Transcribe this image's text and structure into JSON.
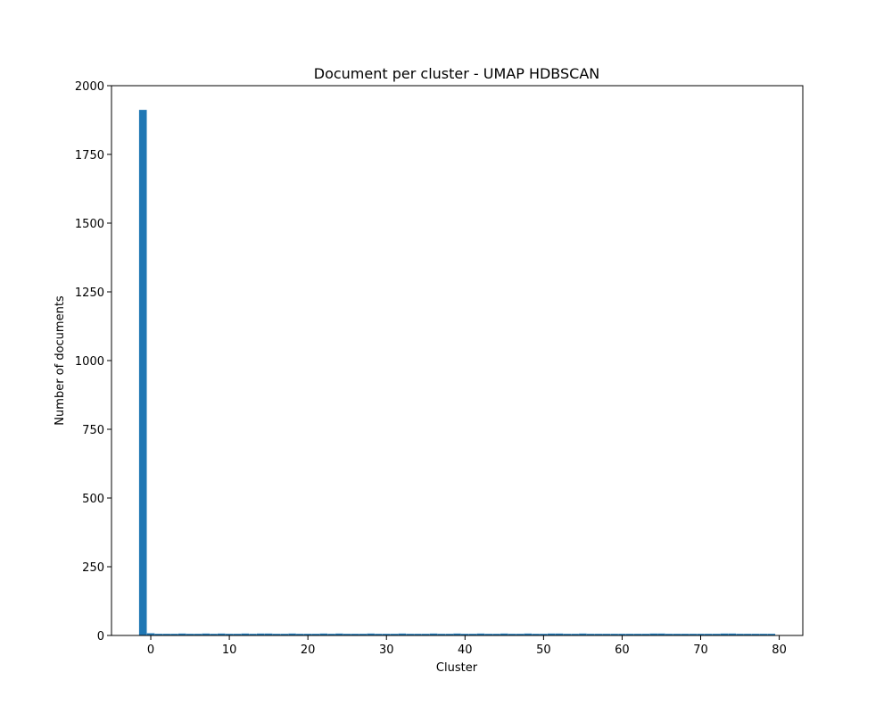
{
  "chart_data": {
    "type": "bar",
    "title": "Document per cluster - UMAP HDBSCAN",
    "xlabel": "Cluster",
    "ylabel": "Number of documents",
    "xlim": [
      -5,
      83
    ],
    "ylim": [
      0,
      2000
    ],
    "xticks": [
      0,
      10,
      20,
      30,
      40,
      50,
      60,
      70,
      80
    ],
    "yticks": [
      0,
      250,
      500,
      750,
      1000,
      1250,
      1500,
      1750,
      2000
    ],
    "bar_color": "#1f77b4",
    "x": [
      -1,
      0,
      1,
      2,
      3,
      4,
      5,
      6,
      7,
      8,
      9,
      10,
      11,
      12,
      13,
      14,
      15,
      16,
      17,
      18,
      19,
      20,
      21,
      22,
      23,
      24,
      25,
      26,
      27,
      28,
      29,
      30,
      31,
      32,
      33,
      34,
      35,
      36,
      37,
      38,
      39,
      40,
      41,
      42,
      43,
      44,
      45,
      46,
      47,
      48,
      49,
      50,
      51,
      52,
      53,
      54,
      55,
      56,
      57,
      58,
      59,
      60,
      61,
      62,
      63,
      64,
      65,
      66,
      67,
      68,
      69,
      70,
      71,
      72,
      73,
      74,
      75,
      76,
      77,
      78,
      79
    ],
    "values": [
      1912,
      8,
      6,
      6,
      6,
      7,
      6,
      6,
      7,
      6,
      7,
      6,
      6,
      7,
      6,
      7,
      7,
      6,
      6,
      7,
      6,
      6,
      6,
      7,
      6,
      7,
      6,
      6,
      6,
      7,
      6,
      6,
      6,
      7,
      6,
      6,
      6,
      7,
      6,
      6,
      7,
      6,
      6,
      7,
      6,
      6,
      7,
      6,
      6,
      7,
      6,
      6,
      7,
      7,
      6,
      6,
      7,
      6,
      6,
      6,
      6,
      6,
      6,
      6,
      6,
      7,
      7,
      6,
      6,
      6,
      6,
      6,
      6,
      6,
      7,
      7,
      6,
      6,
      6,
      6,
      6
    ]
  }
}
